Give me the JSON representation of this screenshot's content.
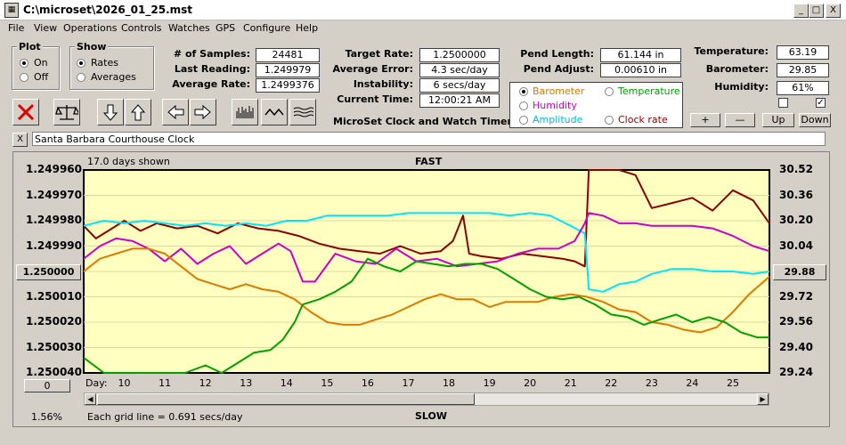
{
  "titlebar": {
    "title": "C:\\microset\\2026_01_25.mst",
    "minimize": "_",
    "maximize": "□",
    "close": "X"
  },
  "menu": [
    "File",
    "View",
    "Operations",
    "Controls",
    "Watches",
    "GPS",
    "Configure",
    "Help"
  ],
  "plot_group": {
    "label": "Plot",
    "options": [
      "On",
      "Off"
    ],
    "selected": "On"
  },
  "show_group": {
    "label": "Show",
    "options": [
      "Rates",
      "Averages"
    ],
    "selected": "Rates"
  },
  "stats": {
    "samples_label": "# of Samples:",
    "samples": "24481",
    "last_label": "Last Reading:",
    "last": "1.249979",
    "avg_label": "Average Rate:",
    "avg": "1.2499376",
    "target_label": "Target Rate:",
    "target": "1.2500000",
    "err_label": "Average Error:",
    "err": "4.3 sec/day",
    "instab_label": "Instability:",
    "instab": "6 secs/day",
    "time_label": "Current Time:",
    "time": "12:00:21 AM",
    "pend_len_label": "Pend Length:",
    "pend_len": "61.144 in",
    "pend_adj_label": "Pend Adjust:",
    "pend_adj": "0.00610 in",
    "temp_label": "Temperature:",
    "temp": "63.19",
    "baro_label": "Barometer:",
    "baro": "29.85",
    "hum_label": "Humidity:",
    "hum": "61%"
  },
  "app_name": "MicroSet Clock and Watch Timer",
  "overlay_options": {
    "items": [
      {
        "label": "Barometer",
        "color": "#e07800",
        "selected": true
      },
      {
        "label": "Temperature",
        "color": "#00a000",
        "selected": false
      },
      {
        "label": "Humidity",
        "color": "#cc00cc",
        "selected": false
      },
      {
        "label": "Amplitude",
        "color": "#00b8e0",
        "selected": false
      },
      {
        "label": "Clock rate",
        "color": "#8b0000",
        "selected": false
      }
    ]
  },
  "adjust_buttons": {
    "plus": "+",
    "minus": "—",
    "up": "Up",
    "down": "Down"
  },
  "checkboxes": [
    false,
    true
  ],
  "toolbar_icons": [
    "close-icon",
    "balance-scale-icon",
    "arrow-down-icon",
    "arrow-up-icon",
    "arrow-left-icon",
    "arrow-right-icon",
    "bar-graph-icon",
    "wave-icon",
    "lines-icon"
  ],
  "watch_name": "Santa Barbara Courthouse Clock",
  "watch_close": "X",
  "graph": {
    "days_shown": "17.0 days shown",
    "top": "FAST",
    "bottom": "SLOW",
    "grid_note": "Each grid line = 0.691 secs/day",
    "percent": "1.56%",
    "day_label": "Day:",
    "zero_button": "0",
    "center_value": "1.250000",
    "right_value": "29.88"
  },
  "chart_data": {
    "type": "line",
    "x_label": "Day:",
    "x_ticks": [
      10,
      11,
      12,
      13,
      14,
      15,
      16,
      17,
      18,
      19,
      20,
      21,
      22,
      23,
      24,
      25
    ],
    "xlim": [
      9,
      25.9
    ],
    "left_ticks": [
      "1.249960",
      "1.249970",
      "1.249980",
      "1.249990",
      "1.250000",
      "1.250010",
      "1.250020",
      "1.250030",
      "1.250040"
    ],
    "right_ticks": [
      "30.52",
      "30.36",
      "30.20",
      "30.04",
      "29.88",
      "29.72",
      "29.56",
      "29.40",
      "29.24"
    ],
    "ylim_left": [
      1.25004,
      1.24996
    ],
    "ylim_right": [
      29.24,
      30.52
    ],
    "series": [
      {
        "name": "Clock rate",
        "color": "#8b0000",
        "points": [
          [
            9.0,
            1.249982
          ],
          [
            9.3,
            1.249987
          ],
          [
            9.7,
            1.249983
          ],
          [
            10.0,
            1.24998
          ],
          [
            10.4,
            1.249984
          ],
          [
            10.8,
            1.249981
          ],
          [
            11.3,
            1.249983
          ],
          [
            11.8,
            1.249982
          ],
          [
            12.3,
            1.249985
          ],
          [
            12.8,
            1.249981
          ],
          [
            13.3,
            1.249983
          ],
          [
            13.8,
            1.249984
          ],
          [
            14.3,
            1.249986
          ],
          [
            14.8,
            1.249989
          ],
          [
            15.3,
            1.249991
          ],
          [
            15.8,
            1.249992
          ],
          [
            16.3,
            1.249993
          ],
          [
            16.8,
            1.24999
          ],
          [
            17.3,
            1.249993
          ],
          [
            17.8,
            1.249992
          ],
          [
            18.1,
            1.249988
          ],
          [
            18.35,
            1.249978
          ],
          [
            18.5,
            1.249993
          ],
          [
            18.8,
            1.249994
          ],
          [
            19.3,
            1.249995
          ],
          [
            19.8,
            1.249993
          ],
          [
            20.3,
            1.249994
          ],
          [
            20.8,
            1.249995
          ],
          [
            21.1,
            1.249996
          ],
          [
            21.35,
            1.249998
          ],
          [
            21.45,
            1.24996
          ],
          [
            22.2,
            1.24996
          ],
          [
            22.6,
            1.249962
          ],
          [
            23.0,
            1.249975
          ],
          [
            23.5,
            1.249973
          ],
          [
            24.0,
            1.249971
          ],
          [
            24.5,
            1.249976
          ],
          [
            25.0,
            1.249968
          ],
          [
            25.5,
            1.249972
          ],
          [
            25.9,
            1.249981
          ]
        ]
      },
      {
        "name": "Amplitude",
        "color": "#00e5ff",
        "points": [
          [
            9.0,
            1.249982
          ],
          [
            9.5,
            1.24998
          ],
          [
            10.0,
            1.249981
          ],
          [
            10.5,
            1.24998
          ],
          [
            11.0,
            1.249981
          ],
          [
            11.5,
            1.249982
          ],
          [
            12.0,
            1.249981
          ],
          [
            12.5,
            1.249982
          ],
          [
            13.0,
            1.249981
          ],
          [
            13.5,
            1.249982
          ],
          [
            14.0,
            1.24998
          ],
          [
            14.5,
            1.24998
          ],
          [
            15.0,
            1.249978
          ],
          [
            15.5,
            1.249978
          ],
          [
            16.0,
            1.249978
          ],
          [
            16.5,
            1.249978
          ],
          [
            17.0,
            1.249977
          ],
          [
            17.5,
            1.249977
          ],
          [
            18.0,
            1.249977
          ],
          [
            18.5,
            1.249977
          ],
          [
            19.0,
            1.249977
          ],
          [
            19.5,
            1.249978
          ],
          [
            20.0,
            1.249977
          ],
          [
            20.5,
            1.249978
          ],
          [
            21.0,
            1.249982
          ],
          [
            21.35,
            1.249985
          ],
          [
            21.45,
            1.250007
          ],
          [
            21.8,
            1.250008
          ],
          [
            22.2,
            1.250005
          ],
          [
            22.6,
            1.250004
          ],
          [
            23.0,
            1.250001
          ],
          [
            23.5,
            1.249999
          ],
          [
            24.0,
            1.249999
          ],
          [
            24.5,
            1.25
          ],
          [
            25.0,
            1.25
          ],
          [
            25.5,
            1.250001
          ],
          [
            25.9,
            1.25
          ]
        ]
      },
      {
        "name": "Humidity",
        "color": "#cc00cc",
        "points": [
          [
            9.0,
            1.249995
          ],
          [
            9.4,
            1.24999
          ],
          [
            9.8,
            1.249987
          ],
          [
            10.2,
            1.249988
          ],
          [
            10.6,
            1.249991
          ],
          [
            11.0,
            1.249996
          ],
          [
            11.4,
            1.249991
          ],
          [
            11.8,
            1.249997
          ],
          [
            12.2,
            1.249993
          ],
          [
            12.6,
            1.24999
          ],
          [
            13.0,
            1.249997
          ],
          [
            13.4,
            1.249993
          ],
          [
            13.8,
            1.249989
          ],
          [
            14.1,
            1.249992
          ],
          [
            14.4,
            1.250004
          ],
          [
            14.7,
            1.250004
          ],
          [
            15.2,
            1.249993
          ],
          [
            15.7,
            1.249996
          ],
          [
            16.2,
            1.249997
          ],
          [
            16.7,
            1.249991
          ],
          [
            17.2,
            1.249996
          ],
          [
            17.7,
            1.249995
          ],
          [
            18.2,
            1.249998
          ],
          [
            18.7,
            1.249997
          ],
          [
            19.2,
            1.249996
          ],
          [
            19.7,
            1.249993
          ],
          [
            20.2,
            1.249991
          ],
          [
            20.7,
            1.249991
          ],
          [
            21.1,
            1.249988
          ],
          [
            21.35,
            1.249981
          ],
          [
            21.45,
            1.249977
          ],
          [
            21.8,
            1.249978
          ],
          [
            22.2,
            1.249981
          ],
          [
            22.6,
            1.249981
          ],
          [
            23.0,
            1.249982
          ],
          [
            23.5,
            1.249982
          ],
          [
            24.0,
            1.249982
          ],
          [
            24.5,
            1.249983
          ],
          [
            25.0,
            1.249986
          ],
          [
            25.5,
            1.24999
          ],
          [
            25.9,
            1.249992
          ]
        ]
      },
      {
        "name": "Barometer",
        "color": "#e07800",
        "points": [
          [
            9.0,
            1.25
          ],
          [
            9.4,
            1.249995
          ],
          [
            9.8,
            1.249993
          ],
          [
            10.2,
            1.249991
          ],
          [
            10.6,
            1.249991
          ],
          [
            11.0,
            1.249993
          ],
          [
            11.4,
            1.249998
          ],
          [
            11.8,
            1.250003
          ],
          [
            12.2,
            1.250005
          ],
          [
            12.6,
            1.250007
          ],
          [
            13.0,
            1.250005
          ],
          [
            13.4,
            1.250007
          ],
          [
            13.8,
            1.250008
          ],
          [
            14.2,
            1.250011
          ],
          [
            14.6,
            1.250016
          ],
          [
            15.0,
            1.25002
          ],
          [
            15.4,
            1.250021
          ],
          [
            15.8,
            1.250021
          ],
          [
            16.2,
            1.250019
          ],
          [
            16.6,
            1.250017
          ],
          [
            17.0,
            1.250014
          ],
          [
            17.4,
            1.250011
          ],
          [
            17.8,
            1.250009
          ],
          [
            18.2,
            1.250011
          ],
          [
            18.6,
            1.250011
          ],
          [
            19.0,
            1.250014
          ],
          [
            19.4,
            1.250012
          ],
          [
            19.8,
            1.250012
          ],
          [
            20.2,
            1.250012
          ],
          [
            20.6,
            1.25001
          ],
          [
            21.0,
            1.250009
          ],
          [
            21.4,
            1.25001
          ],
          [
            21.8,
            1.250012
          ],
          [
            22.2,
            1.250015
          ],
          [
            22.6,
            1.250016
          ],
          [
            23.0,
            1.25002
          ],
          [
            23.4,
            1.250021
          ],
          [
            23.8,
            1.250023
          ],
          [
            24.2,
            1.250024
          ],
          [
            24.6,
            1.250022
          ],
          [
            25.0,
            1.250016
          ],
          [
            25.4,
            1.250009
          ],
          [
            25.9,
            1.250002
          ]
        ]
      },
      {
        "name": "Temperature",
        "color": "#00a000",
        "points": [
          [
            9.0,
            1.250034
          ],
          [
            9.5,
            1.25004
          ],
          [
            10.0,
            1.25004
          ],
          [
            10.5,
            1.25004
          ],
          [
            11.0,
            1.25004
          ],
          [
            11.5,
            1.25004
          ],
          [
            12.0,
            1.250037
          ],
          [
            12.4,
            1.25004
          ],
          [
            12.8,
            1.250036
          ],
          [
            13.2,
            1.250032
          ],
          [
            13.6,
            1.250031
          ],
          [
            13.9,
            1.250027
          ],
          [
            14.2,
            1.25002
          ],
          [
            14.4,
            1.250013
          ],
          [
            14.8,
            1.250011
          ],
          [
            15.2,
            1.250008
          ],
          [
            15.6,
            1.250004
          ],
          [
            16.0,
            1.249995
          ],
          [
            16.4,
            1.249998
          ],
          [
            16.8,
            1.25
          ],
          [
            17.2,
            1.249996
          ],
          [
            17.6,
            1.249997
          ],
          [
            18.0,
            1.249998
          ],
          [
            18.4,
            1.249997
          ],
          [
            18.8,
            1.249997
          ],
          [
            19.2,
            1.249999
          ],
          [
            19.6,
            1.250003
          ],
          [
            20.0,
            1.250007
          ],
          [
            20.4,
            1.25001
          ],
          [
            20.8,
            1.250011
          ],
          [
            21.2,
            1.25001
          ],
          [
            21.6,
            1.250013
          ],
          [
            22.0,
            1.250017
          ],
          [
            22.4,
            1.250018
          ],
          [
            22.8,
            1.250021
          ],
          [
            23.2,
            1.250019
          ],
          [
            23.6,
            1.250017
          ],
          [
            24.0,
            1.25002
          ],
          [
            24.4,
            1.250018
          ],
          [
            24.8,
            1.25002
          ],
          [
            25.2,
            1.250024
          ],
          [
            25.6,
            1.250026
          ],
          [
            25.9,
            1.250026
          ]
        ]
      }
    ]
  }
}
